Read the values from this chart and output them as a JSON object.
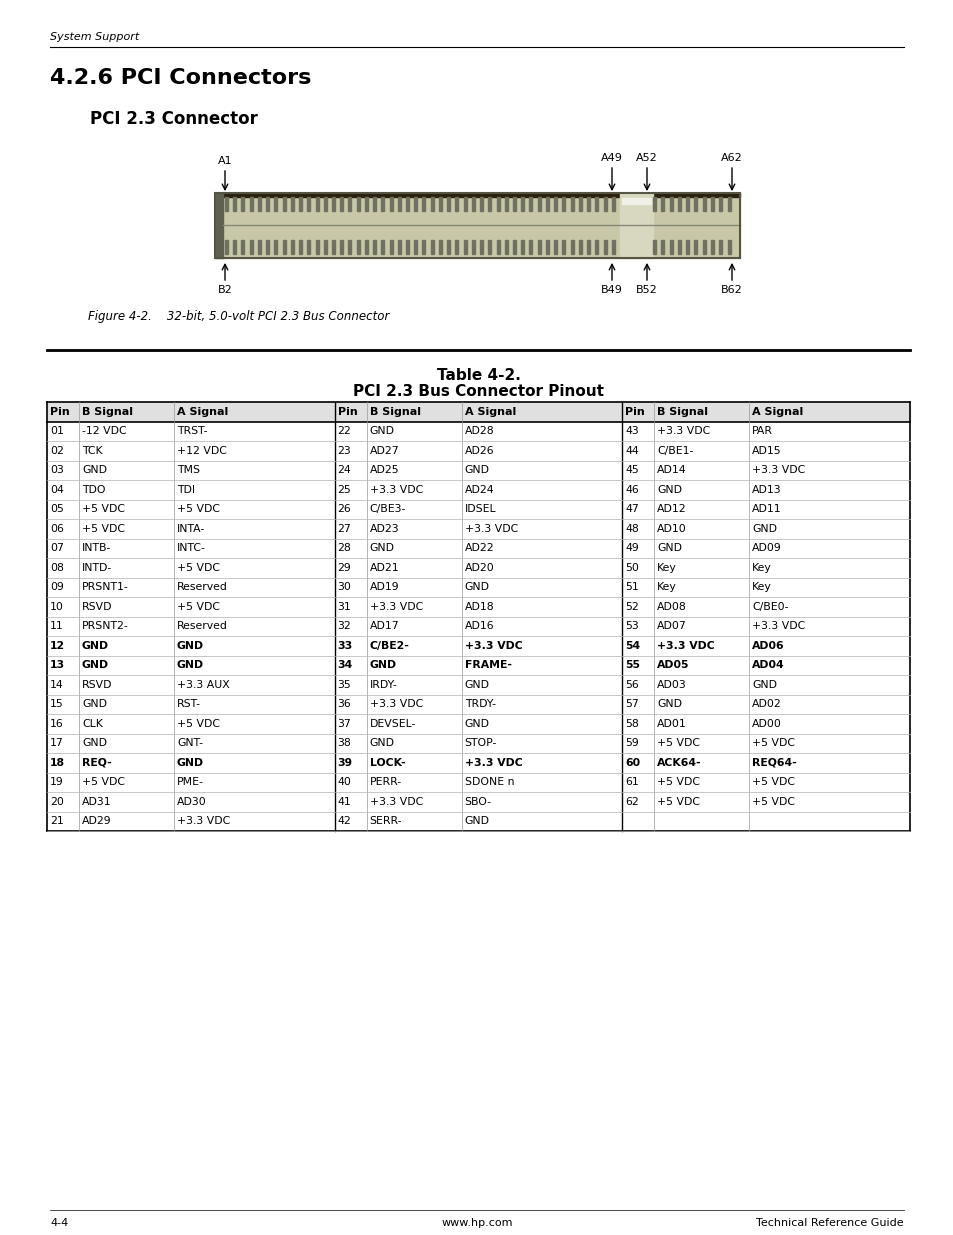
{
  "page_header": "System Support",
  "section_title": "4.2.6 PCI Connectors",
  "subsection_title": "PCI 2.3 Connector",
  "figure_caption": "Figure 4-2.    32-bit, 5.0-volt PCI 2.3 Bus Connector",
  "table_title_line1": "Table 4-2.",
  "table_title_line2": "PCI 2.3 Bus Connector Pinout",
  "col_headers": [
    "Pin",
    "B Signal",
    "A Signal",
    "Pin",
    "B Signal",
    "A Signal",
    "Pin",
    "B Signal",
    "A Signal"
  ],
  "table_rows": [
    [
      "01",
      "-12 VDC",
      "TRST-",
      "22",
      "GND",
      "AD28",
      "43",
      "+3.3 VDC",
      "PAR"
    ],
    [
      "02",
      "TCK",
      "+12 VDC",
      "23",
      "AD27",
      "AD26",
      "44",
      "C/BE1-",
      "AD15"
    ],
    [
      "03",
      "GND",
      "TMS",
      "24",
      "AD25",
      "GND",
      "45",
      "AD14",
      "+3.3 VDC"
    ],
    [
      "04",
      "TDO",
      "TDI",
      "25",
      "+3.3 VDC",
      "AD24",
      "46",
      "GND",
      "AD13"
    ],
    [
      "05",
      "+5 VDC",
      "+5 VDC",
      "26",
      "C/BE3-",
      "IDSEL",
      "47",
      "AD12",
      "AD11"
    ],
    [
      "06",
      "+5 VDC",
      "INTA-",
      "27",
      "AD23",
      "+3.3 VDC",
      "48",
      "AD10",
      "GND"
    ],
    [
      "07",
      "INTB-",
      "INTC-",
      "28",
      "GND",
      "AD22",
      "49",
      "GND",
      "AD09"
    ],
    [
      "08",
      "INTD-",
      "+5 VDC",
      "29",
      "AD21",
      "AD20",
      "50",
      "Key",
      "Key"
    ],
    [
      "09",
      "PRSNT1-",
      "Reserved",
      "30",
      "AD19",
      "GND",
      "51",
      "Key",
      "Key"
    ],
    [
      "10",
      "RSVD",
      "+5 VDC",
      "31",
      "+3.3 VDC",
      "AD18",
      "52",
      "AD08",
      "C/BE0-"
    ],
    [
      "11",
      "PRSNT2-",
      "Reserved",
      "32",
      "AD17",
      "AD16",
      "53",
      "AD07",
      "+3.3 VDC"
    ],
    [
      "12",
      "GND",
      "GND",
      "33",
      "C/BE2-",
      "+3.3 VDC",
      "54",
      "+3.3 VDC",
      "AD06"
    ],
    [
      "13",
      "GND",
      "GND",
      "34",
      "GND",
      "FRAME-",
      "55",
      "AD05",
      "AD04"
    ],
    [
      "14",
      "RSVD",
      "+3.3 AUX",
      "35",
      "IRDY-",
      "GND",
      "56",
      "AD03",
      "GND"
    ],
    [
      "15",
      "GND",
      "RST-",
      "36",
      "+3.3 VDC",
      "TRDY-",
      "57",
      "GND",
      "AD02"
    ],
    [
      "16",
      "CLK",
      "+5 VDC",
      "37",
      "DEVSEL-",
      "GND",
      "58",
      "AD01",
      "AD00"
    ],
    [
      "17",
      "GND",
      "GNT-",
      "38",
      "GND",
      "STOP-",
      "59",
      "+5 VDC",
      "+5 VDC"
    ],
    [
      "18",
      "REQ-",
      "GND",
      "39",
      "LOCK-",
      "+3.3 VDC",
      "60",
      "ACK64-",
      "REQ64-"
    ],
    [
      "19",
      "+5 VDC",
      "PME-",
      "40",
      "PERR-",
      "SDONE n",
      "61",
      "+5 VDC",
      "+5 VDC"
    ],
    [
      "20",
      "AD31",
      "AD30",
      "41",
      "+3.3 VDC",
      "SBO-",
      "62",
      "+5 VDC",
      "+5 VDC"
    ],
    [
      "21",
      "AD29",
      "+3.3 VDC",
      "42",
      "SERR-",
      "GND",
      "",
      "",
      ""
    ]
  ],
  "bold_pin_rows": [
    11,
    12,
    17
  ],
  "footer_left": "4-4",
  "footer_center": "www.hp.com",
  "footer_right": "Technical Reference Guide",
  "bg_color": "#ffffff"
}
